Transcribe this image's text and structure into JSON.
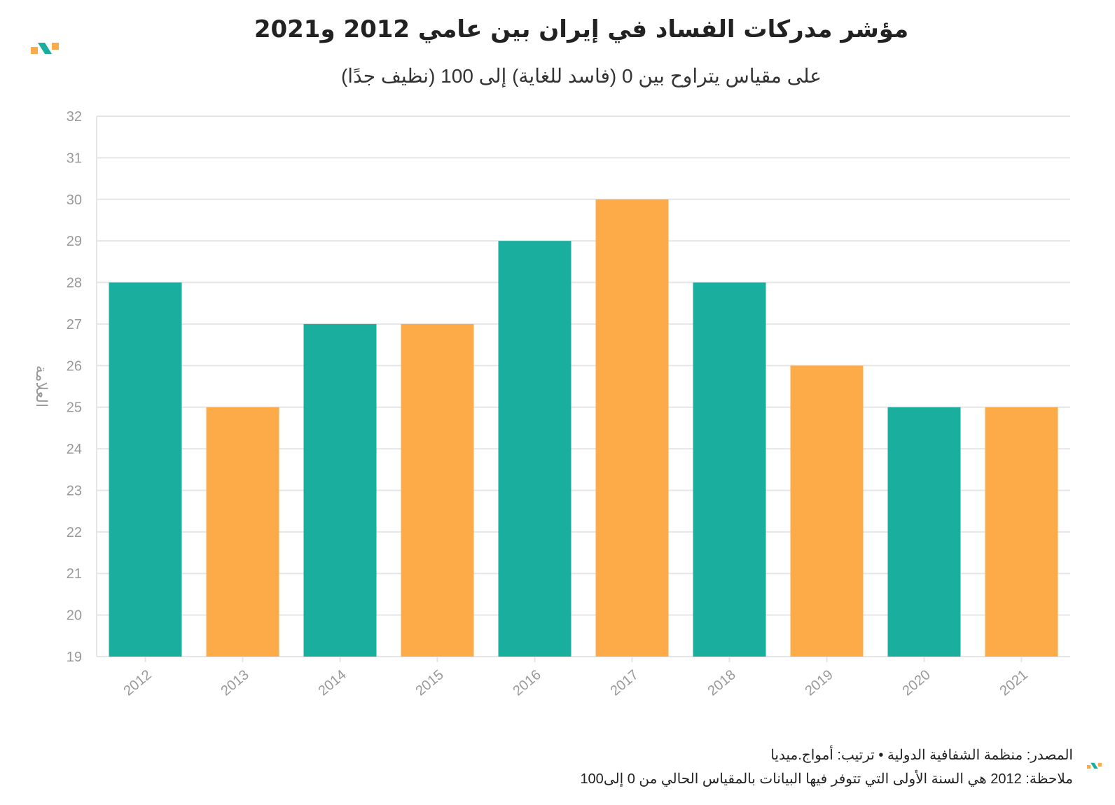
{
  "title": "مؤشر مدركات الفساد في إيران بين عامي 2012 و2021",
  "subtitle": "على مقياس يتراوح بين 0 (فاسد للغاية) إلى 100 (نظيف جدًا)",
  "footer": {
    "source": "المصدر: منظمة الشفافية الدولية • ترتيب: أمواج.ميديا",
    "note": "ملاحظة: 2012 هي السنة الأولى التي تتوفر فيها البيانات بالمقياس الحالي من 0 إلى100"
  },
  "colors": {
    "teal": "#1aae9f",
    "orange": "#fdab48",
    "grid": "#e6e6e6",
    "axis_text": "#999999"
  },
  "icons": {
    "logo": "amwaj-logo-icon"
  },
  "chart_data": {
    "type": "bar",
    "categories": [
      "2012",
      "2013",
      "2014",
      "2015",
      "2016",
      "2017",
      "2018",
      "2019",
      "2020",
      "2021"
    ],
    "values": [
      28,
      25,
      27,
      27,
      29,
      30,
      28,
      26,
      25,
      25
    ],
    "bar_colors": [
      "#1aae9f",
      "#fdab48",
      "#1aae9f",
      "#fdab48",
      "#1aae9f",
      "#fdab48",
      "#1aae9f",
      "#fdab48",
      "#1aae9f",
      "#fdab48"
    ],
    "ylabel": "العلامة",
    "xlabel": "",
    "ylim": [
      19,
      32
    ],
    "yticks": [
      19,
      20,
      21,
      22,
      23,
      24,
      25,
      26,
      27,
      28,
      29,
      30,
      31,
      32
    ],
    "grid": true,
    "legend": "none"
  }
}
